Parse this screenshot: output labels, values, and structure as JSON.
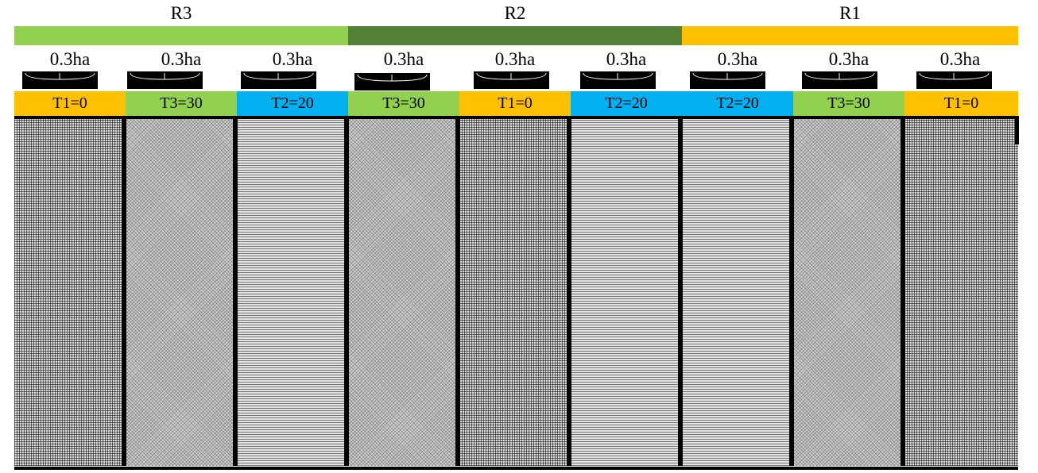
{
  "replications": [
    {
      "label": "R3",
      "color": "#92d050"
    },
    {
      "label": "R2",
      "color": "#538135"
    },
    {
      "label": "R1",
      "color": "#ffc000"
    }
  ],
  "plots": [
    {
      "area": "0.3ha",
      "treatment": "T1=0",
      "color": "#ffc000",
      "pattern": "grid"
    },
    {
      "area": "0.3ha",
      "treatment": "T3=30",
      "color": "#92d050",
      "pattern": "dots"
    },
    {
      "area": "0.3ha",
      "treatment": "T2=20",
      "color": "#00b0f0",
      "pattern": "horizontal"
    },
    {
      "area": "0.3ha",
      "treatment": "T3=30",
      "color": "#92d050",
      "pattern": "dots"
    },
    {
      "area": "0.3ha",
      "treatment": "T1=0",
      "color": "#ffc000",
      "pattern": "grid"
    },
    {
      "area": "0.3ha",
      "treatment": "T2=20",
      "color": "#00b0f0",
      "pattern": "horizontal"
    },
    {
      "area": "0.3ha",
      "treatment": "T2=20",
      "color": "#00b0f0",
      "pattern": "horizontal"
    },
    {
      "area": "0.3ha",
      "treatment": "T3=30",
      "color": "#92d050",
      "pattern": "dots"
    },
    {
      "area": "0.3ha",
      "treatment": "T1=0",
      "color": "#ffc000",
      "pattern": "grid"
    }
  ]
}
